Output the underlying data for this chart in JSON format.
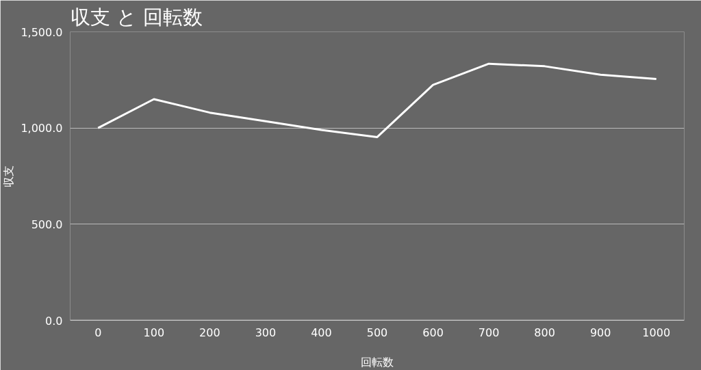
{
  "chart_data": {
    "type": "line",
    "title": "収支 と 回転数",
    "xlabel": "回転数",
    "ylabel": "収支",
    "x": [
      0,
      100,
      200,
      300,
      400,
      500,
      600,
      700,
      800,
      900,
      1000
    ],
    "series": [
      {
        "color": "#ffffff",
        "values": [
          1000,
          1150,
          1080,
          1035,
          990,
          953,
          1224,
          1334,
          1321,
          1277,
          1255
        ]
      }
    ],
    "xlim": [
      -50,
      1050
    ],
    "xticks": [
      0,
      100,
      200,
      300,
      400,
      500,
      600,
      700,
      800,
      900,
      1000
    ],
    "ylim": [
      0,
      1500
    ],
    "yticks": [
      {
        "value": 0,
        "label": "0.0"
      },
      {
        "value": 500,
        "label": "500.0"
      },
      {
        "value": 1000,
        "label": "1,000.0"
      },
      {
        "value": 1500,
        "label": "1,500.0"
      }
    ],
    "grid": "y",
    "marker": "none",
    "line_style": "solid"
  }
}
